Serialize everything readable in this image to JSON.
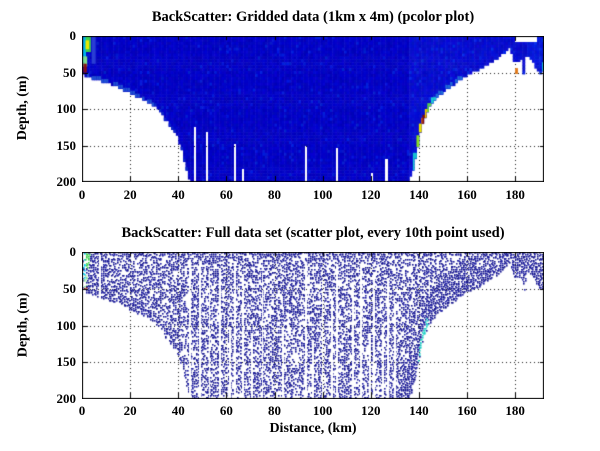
{
  "figure": {
    "background": "#ffffff",
    "text_color": "#000000"
  },
  "bathymetry_km_m": [
    [
      0,
      52
    ],
    [
      1,
      55
    ],
    [
      3,
      57
    ],
    [
      6,
      60
    ],
    [
      9,
      63
    ],
    [
      12,
      66
    ],
    [
      15,
      70
    ],
    [
      18,
      75
    ],
    [
      21,
      80
    ],
    [
      23,
      84
    ],
    [
      24,
      80
    ],
    [
      25,
      88
    ],
    [
      26,
      84
    ],
    [
      27,
      94
    ],
    [
      28,
      90
    ],
    [
      29,
      97
    ],
    [
      30,
      93
    ],
    [
      31,
      101
    ],
    [
      32,
      98
    ],
    [
      33,
      106
    ],
    [
      34,
      112
    ],
    [
      35,
      120
    ],
    [
      35.8,
      112
    ],
    [
      36.5,
      124
    ],
    [
      38,
      132
    ],
    [
      39,
      128
    ],
    [
      40,
      142
    ],
    [
      41,
      152
    ],
    [
      42,
      163
    ],
    [
      43,
      178
    ],
    [
      44,
      190
    ],
    [
      45,
      200
    ],
    [
      131,
      200
    ],
    [
      135.5,
      200
    ],
    [
      136.5,
      193
    ],
    [
      137.5,
      183
    ],
    [
      138.5,
      168
    ],
    [
      139.5,
      150
    ],
    [
      140.5,
      133
    ],
    [
      141.5,
      121
    ],
    [
      142.5,
      111
    ],
    [
      143.5,
      102
    ],
    [
      145,
      94
    ],
    [
      147,
      86
    ],
    [
      149,
      80
    ],
    [
      151,
      75
    ],
    [
      153,
      70
    ],
    [
      155,
      65
    ],
    [
      157,
      60
    ],
    [
      159,
      56
    ],
    [
      161,
      52
    ],
    [
      163,
      49
    ],
    [
      165,
      46
    ],
    [
      167,
      42
    ],
    [
      169,
      38
    ],
    [
      171,
      34
    ],
    [
      173,
      29
    ],
    [
      175,
      24
    ],
    [
      176.5,
      18
    ],
    [
      177.5,
      14
    ],
    [
      178.2,
      20
    ],
    [
      179,
      32
    ],
    [
      179.8,
      44
    ],
    [
      180.6,
      52
    ],
    [
      181.4,
      47
    ],
    [
      182.2,
      38
    ],
    [
      182.8,
      28
    ],
    [
      183.3,
      50
    ],
    [
      183.8,
      56
    ],
    [
      184.3,
      30
    ],
    [
      185.5,
      26
    ],
    [
      186.5,
      30
    ],
    [
      187.5,
      36
    ],
    [
      188.5,
      42
    ],
    [
      189.5,
      46
    ],
    [
      190.5,
      50
    ],
    [
      192,
      47
    ]
  ],
  "seed": 42,
  "chart_data": [
    {
      "type": "heatmap",
      "title": "BackScatter: Gridded data (1km x 4m) (pcolor plot)",
      "xlabel": "",
      "ylabel": "Depth, (m)",
      "xlim": [
        0,
        192
      ],
      "ylim": [
        0,
        200
      ],
      "y_reversed": true,
      "xticks": [
        "0",
        "20",
        "40",
        "60",
        "80",
        "100",
        "120",
        "140",
        "160",
        "180"
      ],
      "yticks": [
        "0",
        "50",
        "100",
        "150",
        "200"
      ],
      "grid": "dotted",
      "cell_km": 1,
      "cell_m": 4,
      "base_color": [
        2,
        2,
        196
      ],
      "right_color": [
        8,
        14,
        206
      ],
      "accents": [
        {
          "x": [
            0.5,
            1.5
          ],
          "depth": [
            0,
            36
          ],
          "color": "#00c0ee"
        },
        {
          "x": [
            1.5,
            3.5
          ],
          "depth": [
            0,
            22
          ],
          "color": "#3fd24e"
        },
        {
          "x": [
            1.5,
            2.8
          ],
          "depth": [
            6,
            18
          ],
          "color": "#e8ea00"
        },
        {
          "x": [
            0.5,
            2
          ],
          "depth": [
            28,
            42
          ],
          "color": "#7fe08a"
        },
        {
          "x": [
            0.6,
            1.8
          ],
          "depth": [
            38,
            50
          ],
          "color": "#8b1010"
        },
        {
          "x": [
            4,
            5.5
          ],
          "depth": [
            0,
            38
          ],
          "color": "#2a3fd4"
        },
        {
          "x": [
            137.5,
            139
          ],
          "depth": [
            160,
            184
          ],
          "color": "#17c3d1"
        },
        {
          "x": [
            139,
            140.5
          ],
          "depth": [
            136,
            160
          ],
          "color": "#8ae022"
        },
        {
          "x": [
            140,
            141.5
          ],
          "depth": [
            120,
            146
          ],
          "color": "#efe400"
        },
        {
          "x": [
            141,
            142.5
          ],
          "depth": [
            112,
            132
          ],
          "color": "#e66000"
        },
        {
          "x": [
            141.5,
            143.2
          ],
          "depth": [
            108,
            138
          ],
          "color": "#7c0f0f"
        },
        {
          "x": [
            142.5,
            144
          ],
          "depth": [
            100,
            116
          ],
          "color": "#efc800"
        },
        {
          "x": [
            143.5,
            145.5
          ],
          "depth": [
            92,
            106
          ],
          "color": "#58d24b"
        },
        {
          "x": [
            145,
            147.5
          ],
          "depth": [
            84,
            98
          ],
          "color": "#1bc7d6"
        },
        {
          "x": [
            179.8,
            181.3
          ],
          "depth": [
            44,
            52
          ],
          "color": "#e07818"
        },
        {
          "x": [
            191.2,
            192
          ],
          "depth": [
            36,
            50
          ],
          "color": "#19c8e8"
        }
      ],
      "floor_fringe": [
        {
          "x": [
            2,
            30
          ],
          "h": 5,
          "color": "#2050d2"
        },
        {
          "x": [
            30,
            44
          ],
          "h": 4,
          "color": "#0d28c8"
        },
        {
          "x": [
            146,
            158
          ],
          "h": 5,
          "color": "#1e6ad8"
        }
      ],
      "white_rects": [
        {
          "x": [
            180,
            189
          ],
          "depth": [
            0,
            8
          ]
        },
        {
          "x": [
            178.6,
            182.4
          ],
          "depth": [
            36,
            54
          ]
        }
      ],
      "gap_columns": [
        {
          "x": 47,
          "top": 124,
          "w": 1
        },
        {
          "x": 52,
          "top": 132,
          "w": 1
        },
        {
          "x": 63.5,
          "top": 148,
          "w": 1
        },
        {
          "x": 67,
          "top": 182,
          "w": 1
        },
        {
          "x": 93,
          "top": 150,
          "w": 1
        },
        {
          "x": 106,
          "top": 154,
          "w": 1
        },
        {
          "x": 120.5,
          "top": 188,
          "w": 1
        },
        {
          "x": 126.5,
          "top": 168,
          "w": 1
        }
      ]
    },
    {
      "type": "scatter",
      "title": "BackScatter: Full data set (scatter plot, every 10th point used)",
      "xlabel": "Distance, (km)",
      "ylabel": "Depth, (m)",
      "xlim": [
        0,
        192
      ],
      "ylim": [
        0,
        200
      ],
      "y_reversed": true,
      "xticks": [
        "0",
        "20",
        "40",
        "60",
        "80",
        "100",
        "120",
        "140",
        "160",
        "180"
      ],
      "yticks": [
        "0",
        "50",
        "100",
        "150",
        "200"
      ],
      "grid": "dotted",
      "dot": {
        "size": 1.6,
        "step": 1.9,
        "colors": [
          "#14148c",
          "#1c1c9a",
          "#2222a6",
          "#1a1a94"
        ]
      },
      "density_base": 0.62,
      "density_rules": [
        {
          "x": [
            88,
            133
          ],
          "depth": [
            4,
            200
          ],
          "p": 0.6
        },
        {
          "x": [
            83,
            91
          ],
          "depth": [
            100,
            155
          ],
          "p": 0.42
        },
        {
          "x": [
            0,
            10
          ],
          "depth": [
            0,
            200
          ],
          "p": 0.85
        },
        {
          "x": [
            10,
            46
          ],
          "near_floor": 14,
          "p": 0.85
        },
        {
          "x": [
            132,
            164
          ],
          "near_floor": 45,
          "p": 0.93
        },
        {
          "x": [
            163,
            192
          ],
          "near_floor": 20,
          "p": 0.85
        },
        {
          "x": [
            176,
            192
          ],
          "depth": [
            0,
            26
          ],
          "p": 0.82
        },
        {
          "x": [
            0,
            192
          ],
          "depth": [
            0,
            2.5
          ],
          "p": 0.97
        }
      ],
      "scatter_accents": [
        {
          "x": [
            0.3,
            1.3
          ],
          "depth": [
            0,
            35
          ],
          "color": "#00c8f0"
        },
        {
          "x": [
            1.3,
            3
          ],
          "depth": [
            0,
            20
          ],
          "color": "#3cd24b"
        },
        {
          "x": [
            1.3,
            2.6
          ],
          "depth": [
            8,
            18
          ],
          "color": "#e8e800"
        },
        {
          "x": [
            0.6,
            1.8
          ],
          "depth": [
            30,
            47
          ],
          "color": "#8fe39b"
        },
        {
          "x": [
            0.8,
            1.8
          ],
          "depth": [
            42,
            50
          ],
          "color": "#8b1010"
        },
        {
          "x": [
            139.5,
            143.5
          ],
          "floor_band": [
            2,
            16
          ],
          "color": "#22d2c8"
        }
      ],
      "white_rects": [
        {
          "x": [
            178.6,
            182.4
          ],
          "depth": [
            36,
            54
          ]
        }
      ],
      "gap_columns": [
        {
          "x": 7.5,
          "top": 5,
          "w": 0.8
        },
        {
          "x": 45,
          "top": 10,
          "w": 0.9
        },
        {
          "x": 49,
          "top": 16,
          "w": 0.8
        },
        {
          "x": 53,
          "top": 28,
          "w": 0.8
        },
        {
          "x": 57.5,
          "top": 22,
          "w": 0.8
        },
        {
          "x": 61.5,
          "top": 105,
          "w": 0.8
        },
        {
          "x": 63.5,
          "top": 12,
          "w": 0.9
        },
        {
          "x": 67,
          "top": 30,
          "w": 0.8
        },
        {
          "x": 70.5,
          "top": 110,
          "w": 0.8
        },
        {
          "x": 75,
          "top": 28,
          "w": 0.8
        },
        {
          "x": 83.5,
          "top": 100,
          "w": 0.8
        },
        {
          "x": 93,
          "top": 14,
          "w": 0.9
        },
        {
          "x": 96,
          "top": 120,
          "w": 0.7
        },
        {
          "x": 100,
          "top": 40,
          "w": 0.8
        },
        {
          "x": 104,
          "top": 60,
          "w": 0.8
        },
        {
          "x": 106,
          "top": 16,
          "w": 0.8
        },
        {
          "x": 112.5,
          "top": 45,
          "w": 0.8
        },
        {
          "x": 116,
          "top": 20,
          "w": 0.8
        },
        {
          "x": 119.7,
          "top": 110,
          "w": 0.7
        },
        {
          "x": 121.5,
          "top": 28,
          "w": 0.8
        },
        {
          "x": 125,
          "top": 100,
          "w": 0.7
        },
        {
          "x": 127,
          "top": 35,
          "w": 0.8
        },
        {
          "x": 130,
          "top": 70,
          "w": 0.7
        }
      ]
    }
  ]
}
